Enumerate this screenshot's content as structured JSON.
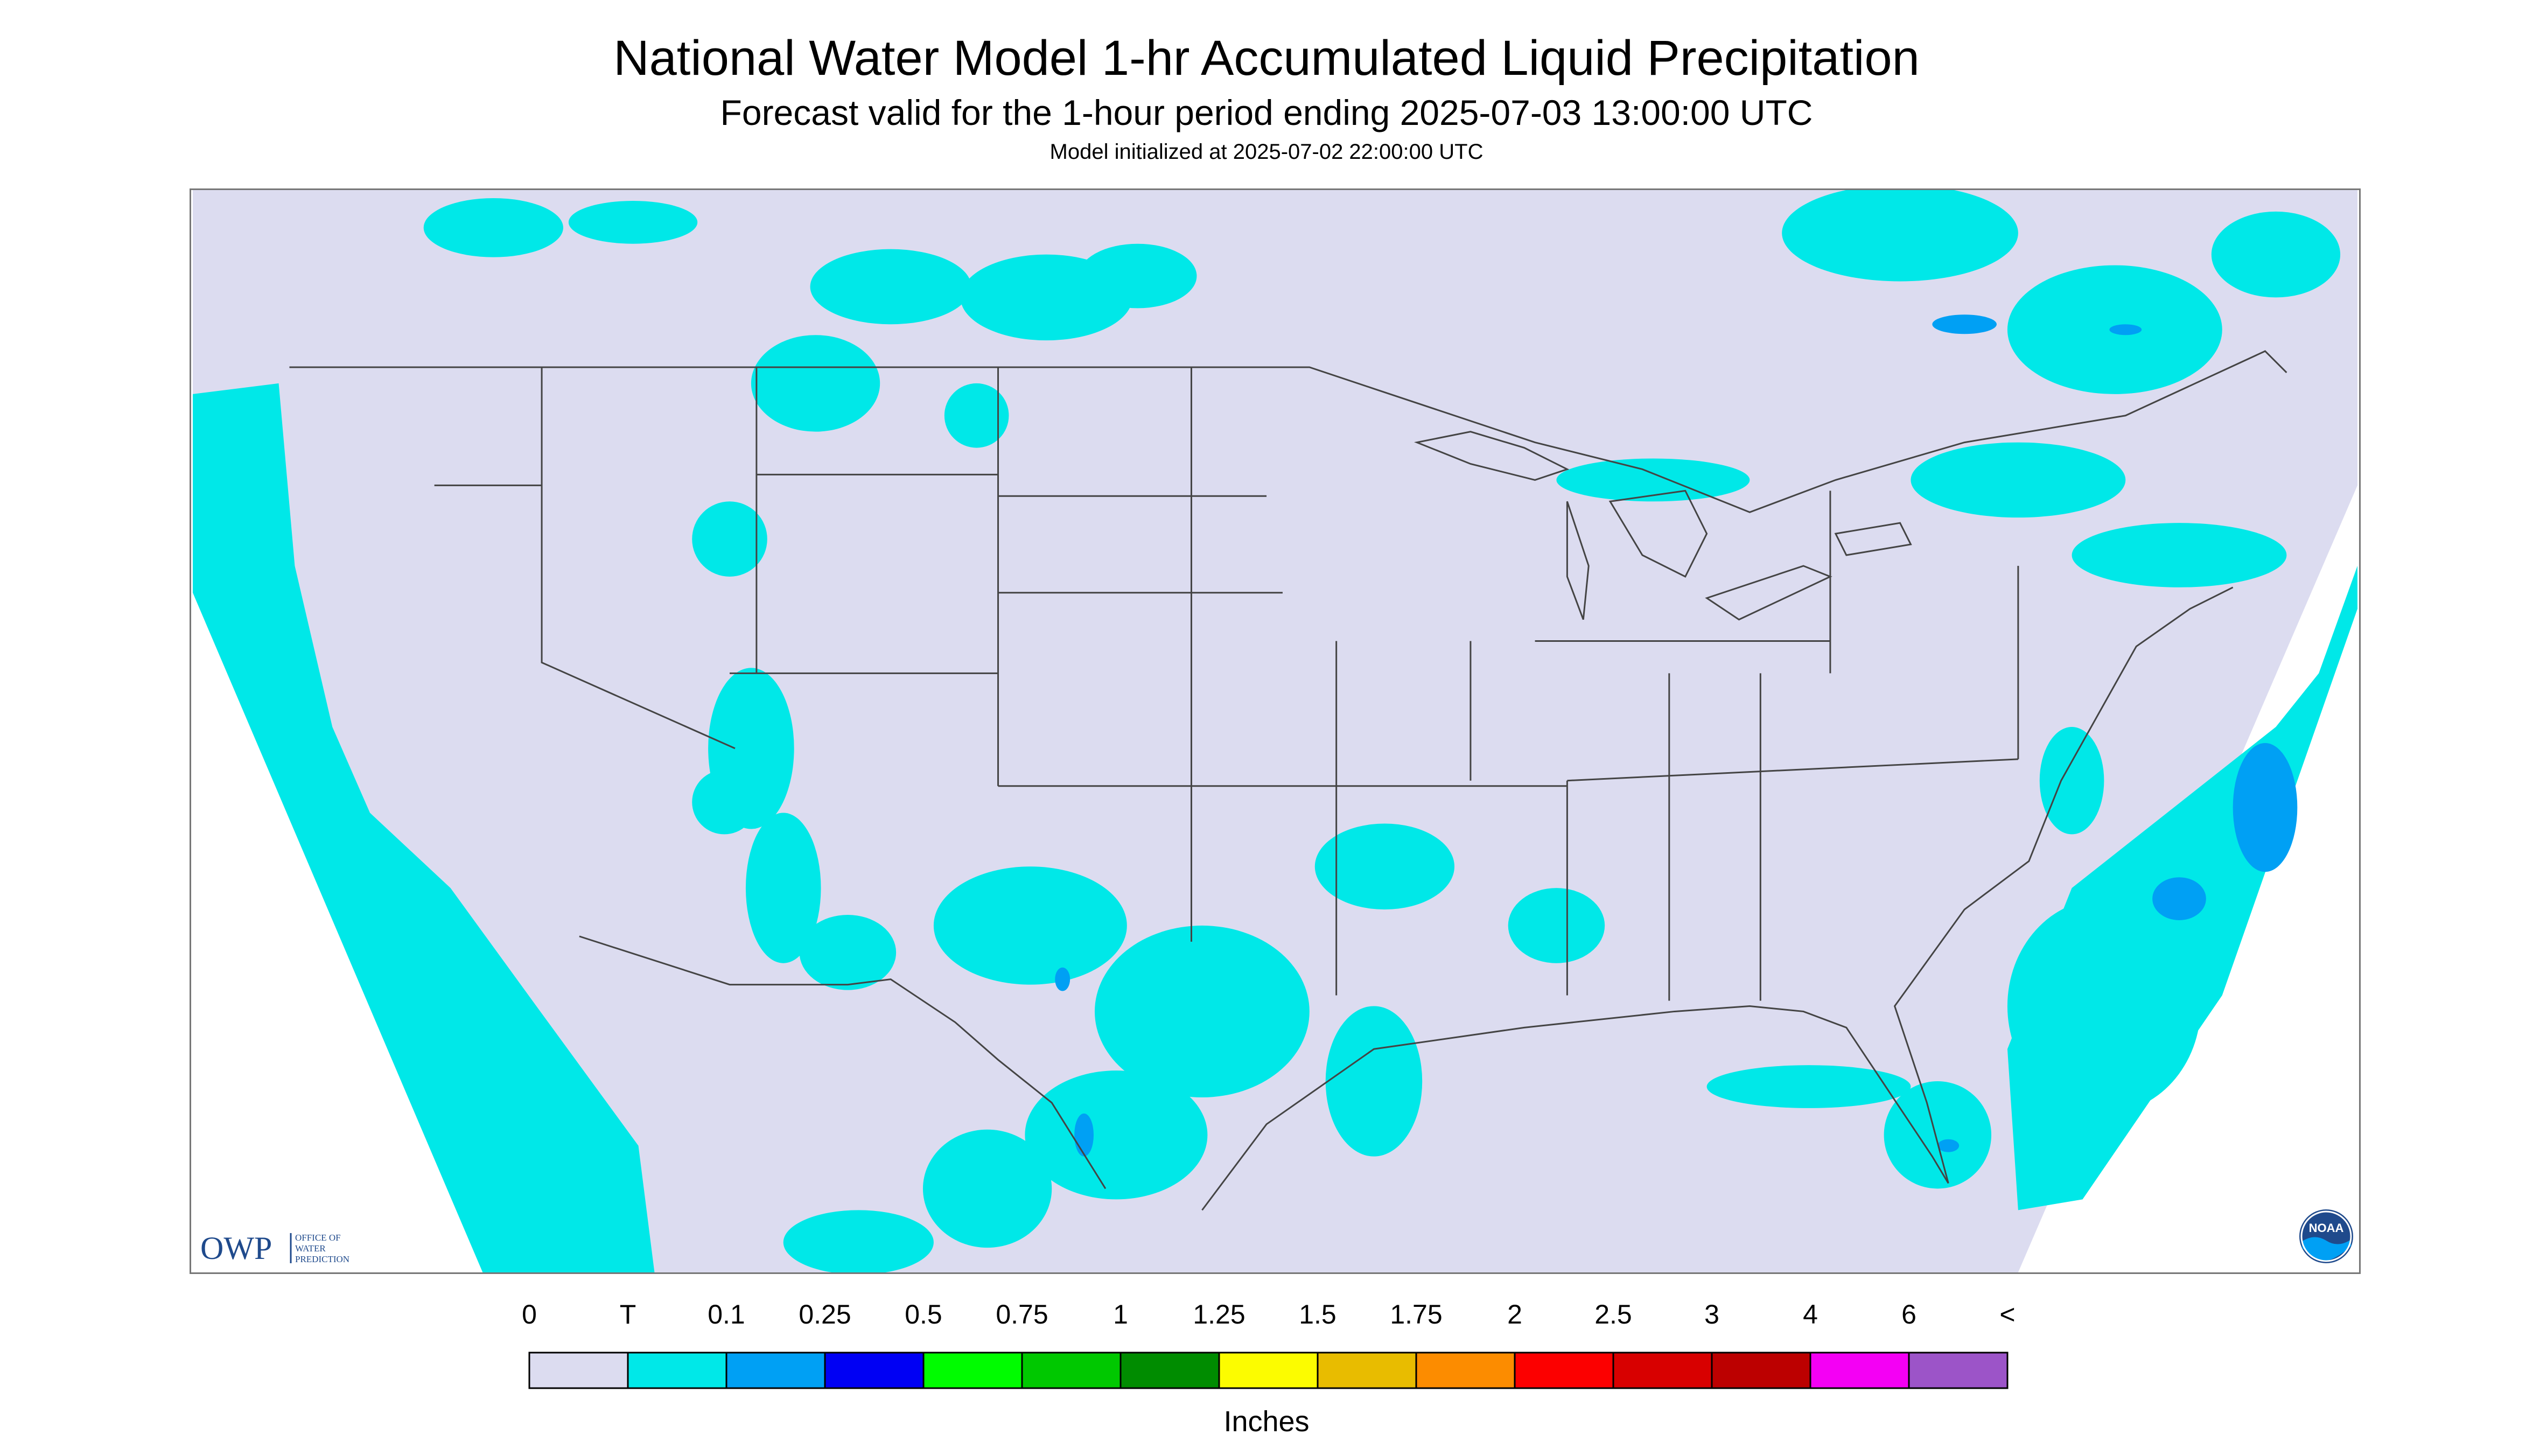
{
  "header": {
    "title": "National Water Model 1-hr Accumulated Liquid Precipitation",
    "subtitle": "Forecast valid for the 1-hour period ending 2025-07-03 13:00:00 UTC",
    "init_text": "Model initialized at 2025-07-02 22:00:00 UTC"
  },
  "logos": {
    "owp_letters": "OWP",
    "owp_line1": "OFFICE OF",
    "owp_line2": "WATER",
    "owp_line3": "PREDICTION",
    "noaa_text": "NOAA"
  },
  "legend": {
    "unit_label": "Inches",
    "tick_labels": [
      "0",
      "T",
      "0.1",
      "0.25",
      "0.5",
      "0.75",
      "1",
      "1.25",
      "1.5",
      "1.75",
      "2",
      "2.5",
      "3",
      "4",
      "6",
      "<"
    ],
    "colors": [
      "#dcdcf0",
      "#00e8e8",
      "#00a0f4",
      "#0000f4",
      "#00fc00",
      "#00c800",
      "#008c00",
      "#fcfc00",
      "#e8bc00",
      "#fc8c00",
      "#fc0000",
      "#d80000",
      "#bc0000",
      "#f400f4",
      "#9c54c8"
    ]
  },
  "colors": {
    "background_domain": "#dcdcf0",
    "light_precip": "#00e8e8",
    "boundary_lines": "#444444"
  }
}
